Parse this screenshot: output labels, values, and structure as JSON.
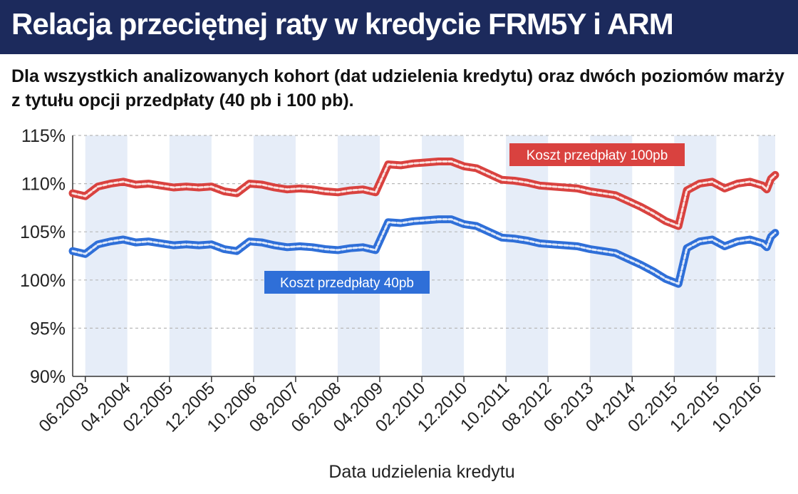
{
  "title": "Relacja przeciętnej raty w kredycie FRM5Y i ARM",
  "subtitle": "Dla wszystkich analizowanych kohort (dat udzielenia kredytu) oraz dwóch poziomów marży z tytułu opcji przedpłaty (40 pb i 100 pb).",
  "colors": {
    "header_bg": "#1c2a5c",
    "series_red": "#d9423f",
    "series_blue": "#2f6fd8",
    "band": "#e6edf8"
  },
  "chart_data": {
    "type": "line",
    "title": "Relacja przeciętnej raty w kredycie FRM5Y i ARM",
    "xlabel": "Data udzielenia kredytu",
    "ylabel": "",
    "ylim": [
      90,
      115
    ],
    "y_ticks": [
      "90%",
      "95%",
      "100%",
      "105%",
      "110%",
      "115%"
    ],
    "x_ticks": [
      "06.2003",
      "04.2004",
      "02.2005",
      "12.2005",
      "10.2006",
      "08.2007",
      "06.2008",
      "04.2009",
      "02.2010",
      "12.2010",
      "10.2011",
      "08.2012",
      "06.2013",
      "04.2014",
      "02.2015",
      "12.2015",
      "10.2016"
    ],
    "x_range": [
      "03.2003",
      "02.2017"
    ],
    "grid": "horizontal dashed",
    "series": [
      {
        "name": "Koszt przedpłaty 100pb",
        "color": "#d9423f",
        "points": [
          [
            "03.2003",
            109.0
          ],
          [
            "06.2003",
            108.7
          ],
          [
            "09.2003",
            109.7
          ],
          [
            "12.2003",
            110.0
          ],
          [
            "03.2004",
            110.2
          ],
          [
            "06.2004",
            109.9
          ],
          [
            "09.2004",
            110.0
          ],
          [
            "12.2004",
            109.8
          ],
          [
            "03.2005",
            109.6
          ],
          [
            "06.2005",
            109.7
          ],
          [
            "09.2005",
            109.6
          ],
          [
            "12.2005",
            109.7
          ],
          [
            "03.2006",
            109.2
          ],
          [
            "06.2006",
            109.0
          ],
          [
            "09.2006",
            110.0
          ],
          [
            "12.2006",
            109.9
          ],
          [
            "03.2007",
            109.6
          ],
          [
            "06.2007",
            109.4
          ],
          [
            "09.2007",
            109.5
          ],
          [
            "12.2007",
            109.4
          ],
          [
            "03.2008",
            109.2
          ],
          [
            "06.2008",
            109.1
          ],
          [
            "09.2008",
            109.3
          ],
          [
            "12.2008",
            109.4
          ],
          [
            "03.2009",
            109.1
          ],
          [
            "06.2009",
            112.0
          ],
          [
            "09.2009",
            111.9
          ],
          [
            "12.2009",
            112.1
          ],
          [
            "03.2010",
            112.2
          ],
          [
            "06.2010",
            112.3
          ],
          [
            "09.2010",
            112.3
          ],
          [
            "12.2010",
            111.8
          ],
          [
            "03.2011",
            111.6
          ],
          [
            "06.2011",
            111.0
          ],
          [
            "09.2011",
            110.4
          ],
          [
            "12.2011",
            110.3
          ],
          [
            "03.2012",
            110.1
          ],
          [
            "06.2012",
            109.8
          ],
          [
            "09.2012",
            109.7
          ],
          [
            "12.2012",
            109.6
          ],
          [
            "03.2013",
            109.5
          ],
          [
            "06.2013",
            109.2
          ],
          [
            "09.2013",
            109.0
          ],
          [
            "12.2013",
            108.8
          ],
          [
            "03.2014",
            108.2
          ],
          [
            "06.2014",
            107.6
          ],
          [
            "09.2014",
            106.9
          ],
          [
            "12.2014",
            106.1
          ],
          [
            "03.2015",
            105.6
          ],
          [
            "05.2015",
            109.3
          ],
          [
            "08.2015",
            110.0
          ],
          [
            "11.2015",
            110.2
          ],
          [
            "02.2016",
            109.5
          ],
          [
            "05.2016",
            110.0
          ],
          [
            "08.2016",
            110.2
          ],
          [
            "11.2016",
            109.8
          ],
          [
            "12.2016",
            109.4
          ],
          [
            "01.2017",
            110.5
          ],
          [
            "02.2017",
            110.9
          ]
        ]
      },
      {
        "name": "Koszt przedpłaty 40pb",
        "color": "#2f6fd8",
        "points": [
          [
            "03.2003",
            103.0
          ],
          [
            "06.2003",
            102.7
          ],
          [
            "09.2003",
            103.7
          ],
          [
            "12.2003",
            104.0
          ],
          [
            "03.2004",
            104.2
          ],
          [
            "06.2004",
            103.9
          ],
          [
            "09.2004",
            104.0
          ],
          [
            "12.2004",
            103.8
          ],
          [
            "03.2005",
            103.6
          ],
          [
            "06.2005",
            103.7
          ],
          [
            "09.2005",
            103.6
          ],
          [
            "12.2005",
            103.7
          ],
          [
            "03.2006",
            103.2
          ],
          [
            "06.2006",
            103.0
          ],
          [
            "09.2006",
            104.0
          ],
          [
            "12.2006",
            103.9
          ],
          [
            "03.2007",
            103.6
          ],
          [
            "06.2007",
            103.4
          ],
          [
            "09.2007",
            103.5
          ],
          [
            "12.2007",
            103.4
          ],
          [
            "03.2008",
            103.2
          ],
          [
            "06.2008",
            103.1
          ],
          [
            "09.2008",
            103.3
          ],
          [
            "12.2008",
            103.4
          ],
          [
            "03.2009",
            103.1
          ],
          [
            "06.2009",
            106.0
          ],
          [
            "09.2009",
            105.9
          ],
          [
            "12.2009",
            106.1
          ],
          [
            "03.2010",
            106.2
          ],
          [
            "06.2010",
            106.3
          ],
          [
            "09.2010",
            106.3
          ],
          [
            "12.2010",
            105.8
          ],
          [
            "03.2011",
            105.6
          ],
          [
            "06.2011",
            105.0
          ],
          [
            "09.2011",
            104.4
          ],
          [
            "12.2011",
            104.3
          ],
          [
            "03.2012",
            104.1
          ],
          [
            "06.2012",
            103.8
          ],
          [
            "09.2012",
            103.7
          ],
          [
            "12.2012",
            103.6
          ],
          [
            "03.2013",
            103.5
          ],
          [
            "06.2013",
            103.2
          ],
          [
            "09.2013",
            103.0
          ],
          [
            "12.2013",
            102.8
          ],
          [
            "03.2014",
            102.2
          ],
          [
            "06.2014",
            101.6
          ],
          [
            "09.2014",
            100.9
          ],
          [
            "12.2014",
            100.1
          ],
          [
            "03.2015",
            99.6
          ],
          [
            "05.2015",
            103.3
          ],
          [
            "08.2015",
            104.0
          ],
          [
            "11.2015",
            104.2
          ],
          [
            "02.2016",
            103.5
          ],
          [
            "05.2016",
            104.0
          ],
          [
            "08.2016",
            104.2
          ],
          [
            "11.2016",
            103.8
          ],
          [
            "12.2016",
            103.4
          ],
          [
            "01.2017",
            104.5
          ],
          [
            "02.2017",
            104.9
          ]
        ]
      }
    ]
  }
}
